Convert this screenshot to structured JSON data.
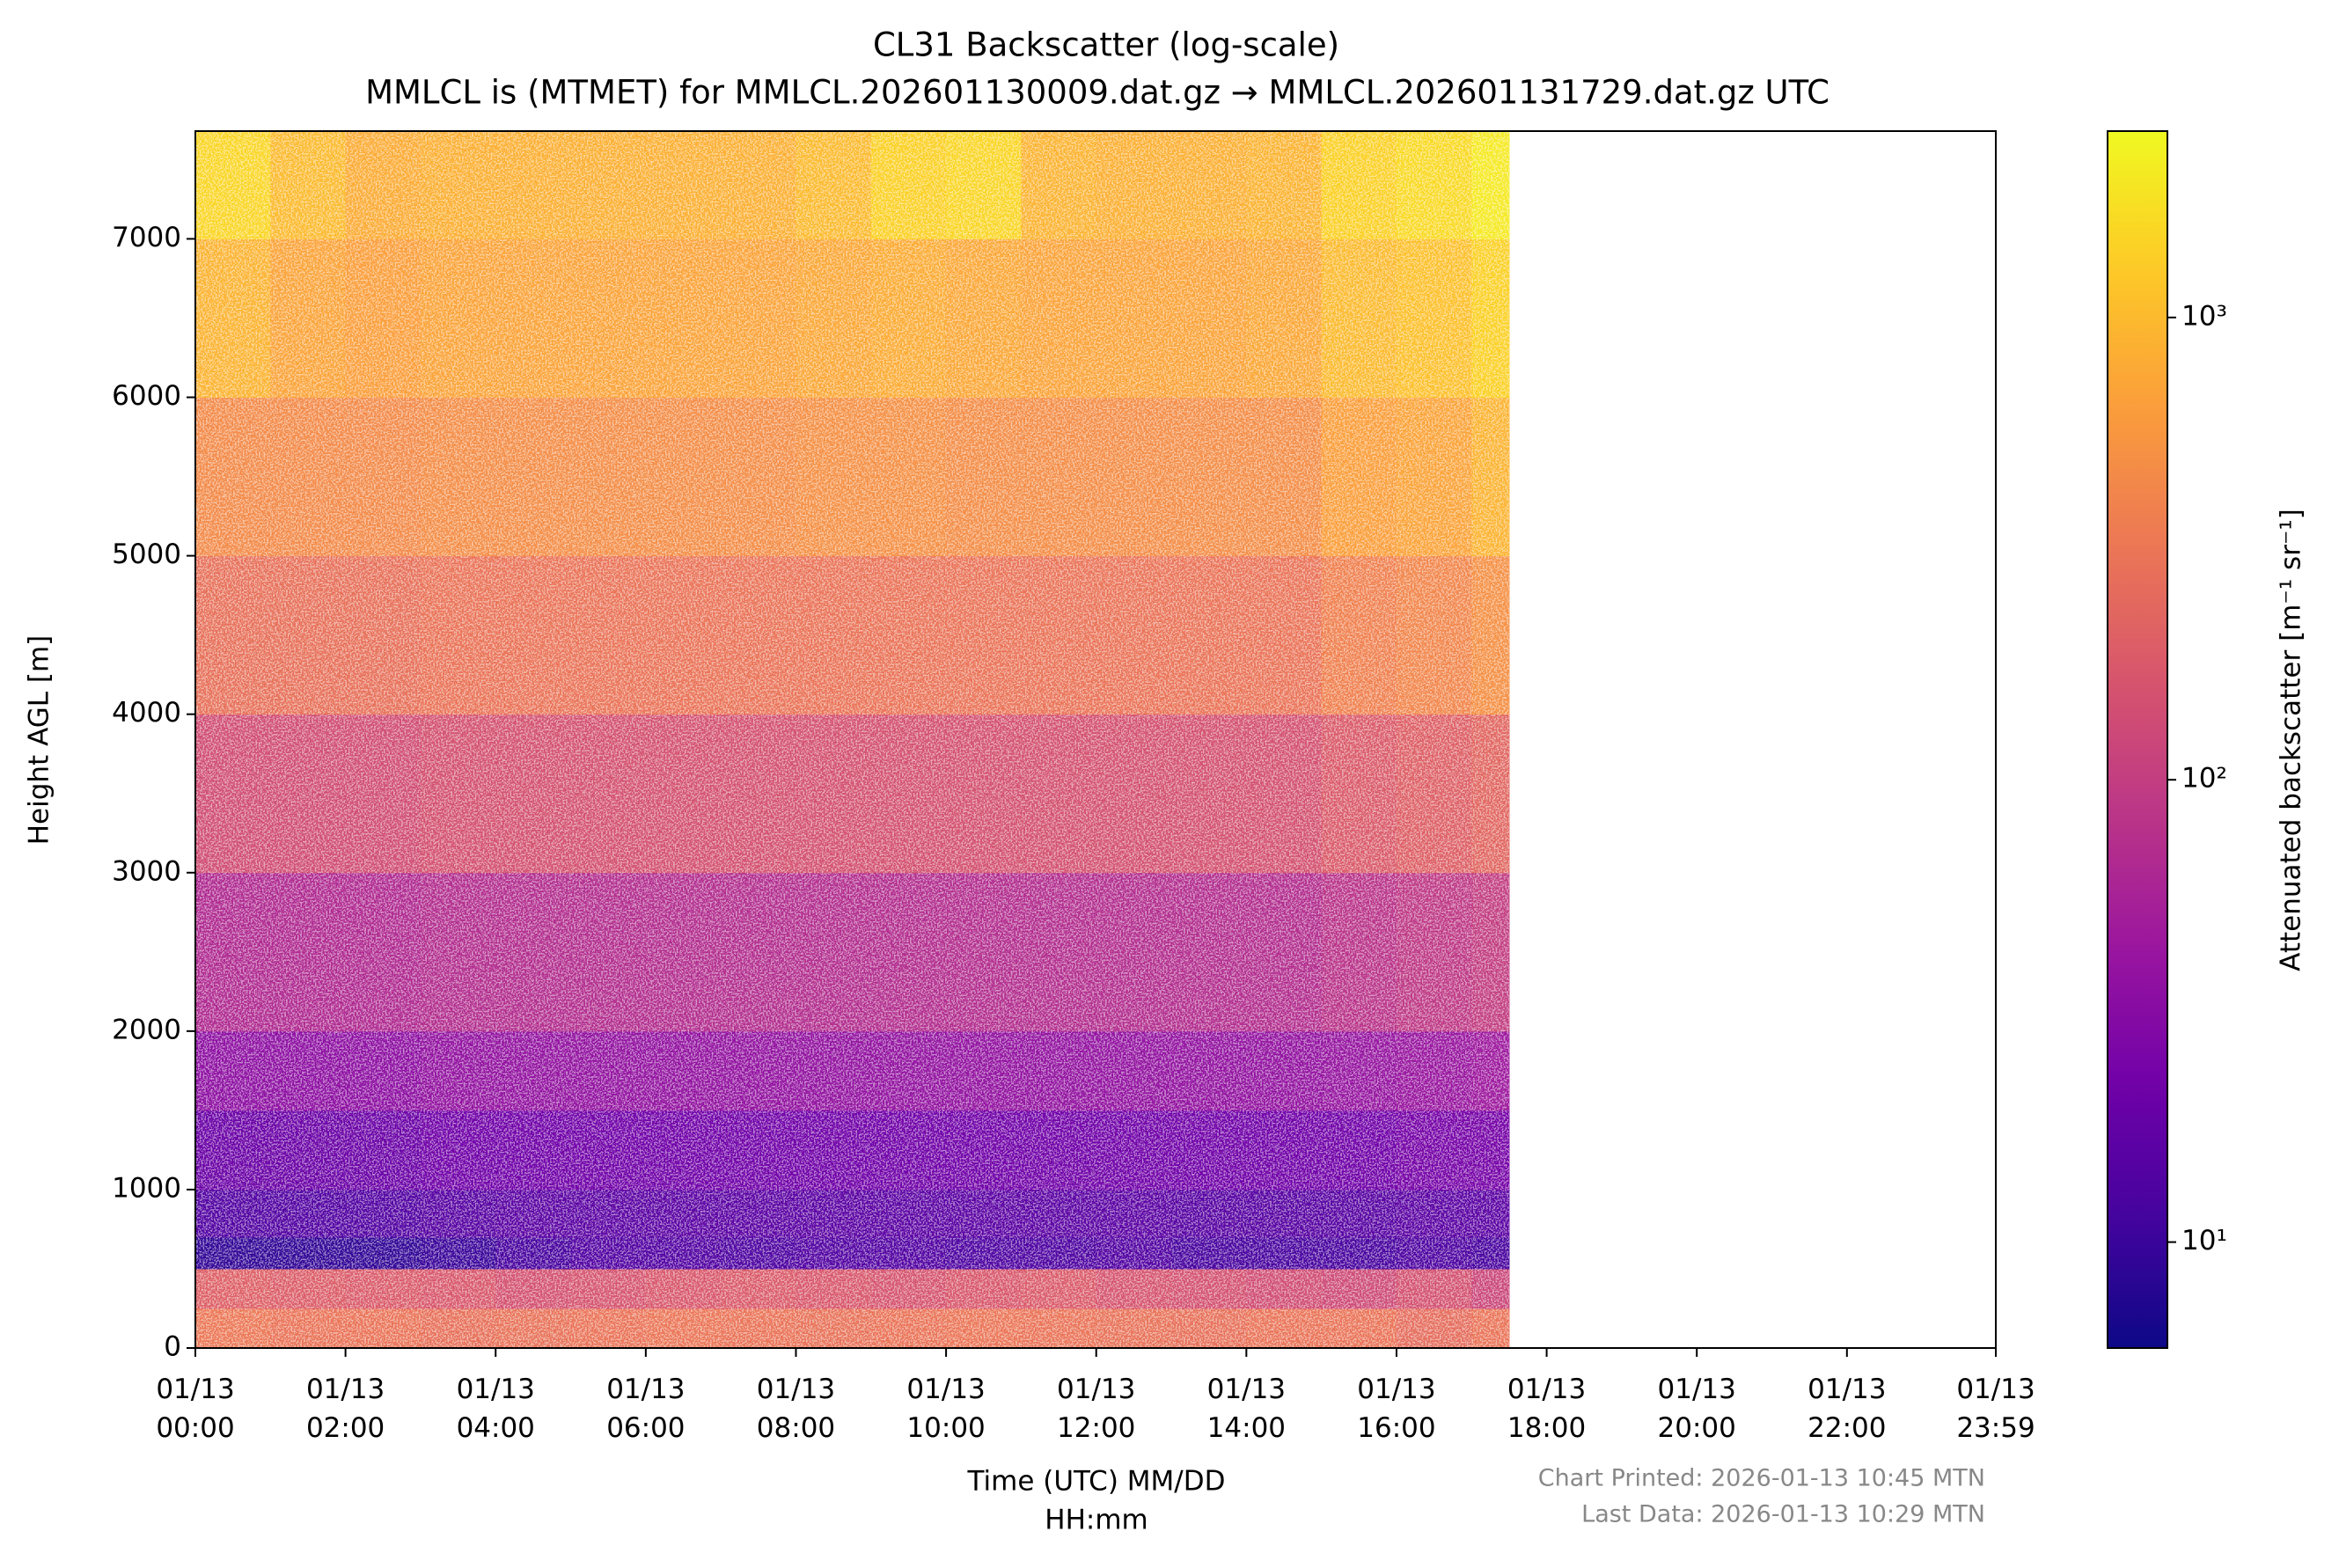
{
  "chart_data": {
    "type": "heatmap",
    "title": "CL31 Backscatter (log-scale)",
    "subtitle": "MMLCL is (MTMET) for MMLCL.202601130009.dat.gz → MMLCL.202601131729.dat.gz UTC",
    "x_label": [
      "Time (UTC) MM/DD",
      "HH:mm"
    ],
    "y_label": "Height AGL [m]",
    "colorbar_label": "Attenuated backscatter [m⁻¹ sr⁻¹]",
    "notes": [
      "Chart Printed: 2026-01-13 10:45 MTN",
      "Last Data: 2026-01-13 10:29 MTN"
    ],
    "colormap": "plasma",
    "color_scale": "log",
    "xlim": [
      0,
      23.983
    ],
    "xticks": [
      {
        "value": 0,
        "label": "01/13 00:00"
      },
      {
        "value": 2,
        "label": "01/13 02:00"
      },
      {
        "value": 4,
        "label": "01/13 04:00"
      },
      {
        "value": 6,
        "label": "01/13 06:00"
      },
      {
        "value": 8,
        "label": "01/13 08:00"
      },
      {
        "value": 10,
        "label": "01/13 10:00"
      },
      {
        "value": 12,
        "label": "01/13 12:00"
      },
      {
        "value": 14,
        "label": "01/13 14:00"
      },
      {
        "value": 16,
        "label": "01/13 16:00"
      },
      {
        "value": 18,
        "label": "01/13 18:00"
      },
      {
        "value": 20,
        "label": "01/13 20:00"
      },
      {
        "value": 22,
        "label": "01/13 22:00"
      },
      {
        "value": 23.983,
        "label": "01/13 23:59"
      }
    ],
    "ylim": [
      0,
      7680
    ],
    "yticks": [
      0,
      1000,
      2000,
      3000,
      4000,
      5000,
      6000,
      7000
    ],
    "clim": [
      5.9,
      2530
    ],
    "cticks": [
      {
        "value": 10,
        "label": "10¹"
      },
      {
        "value": 100,
        "label": "10²"
      },
      {
        "value": 1000,
        "label": "10³"
      }
    ],
    "x_edges": [
      0,
      1,
      2,
      3,
      4,
      5,
      6,
      7,
      8,
      9,
      10,
      11,
      12,
      13,
      14,
      15,
      16,
      17,
      17.5
    ],
    "y_edges": [
      0,
      250,
      500,
      700,
      1000,
      1500,
      2000,
      3000,
      4000,
      5000,
      6000,
      7000,
      7680
    ],
    "z": [
      [
        320,
        300,
        300,
        280,
        290,
        300,
        310,
        300,
        290,
        300,
        310,
        300,
        290,
        280,
        300,
        300,
        260,
        300
      ],
      [
        200,
        190,
        180,
        170,
        150,
        160,
        170,
        180,
        170,
        160,
        170,
        180,
        160,
        150,
        140,
        130,
        150,
        120
      ],
      [
        9,
        9,
        9,
        10,
        12,
        14,
        14,
        13,
        14,
        14,
        13,
        13,
        14,
        12,
        12,
        12,
        13,
        12
      ],
      [
        14,
        14,
        14,
        15,
        16,
        16,
        16,
        16,
        16,
        16,
        16,
        16,
        16,
        15,
        15,
        15,
        16,
        16
      ],
      [
        20,
        20,
        20,
        22,
        22,
        22,
        22,
        22,
        22,
        22,
        22,
        22,
        22,
        22,
        22,
        22,
        24,
        24
      ],
      [
        35,
        35,
        35,
        38,
        38,
        38,
        38,
        38,
        38,
        38,
        38,
        38,
        38,
        38,
        38,
        40,
        42,
        45
      ],
      [
        65,
        65,
        65,
        70,
        70,
        70,
        70,
        70,
        70,
        70,
        70,
        70,
        70,
        70,
        70,
        80,
        90,
        100
      ],
      [
        140,
        140,
        140,
        150,
        150,
        150,
        150,
        150,
        150,
        150,
        150,
        150,
        150,
        150,
        150,
        180,
        200,
        230
      ],
      [
        280,
        280,
        280,
        300,
        300,
        300,
        300,
        300,
        300,
        300,
        300,
        300,
        300,
        300,
        300,
        380,
        420,
        500
      ],
      [
        450,
        450,
        450,
        480,
        480,
        480,
        480,
        480,
        500,
        500,
        480,
        480,
        480,
        480,
        480,
        650,
        700,
        900
      ],
      [
        900,
        700,
        650,
        700,
        700,
        700,
        700,
        700,
        750,
        800,
        750,
        700,
        700,
        700,
        750,
        1000,
        1100,
        1400
      ],
      [
        1500,
        1000,
        800,
        850,
        850,
        850,
        850,
        850,
        1000,
        1400,
        1500,
        900,
        850,
        850,
        900,
        1400,
        1600,
        2000
      ]
    ]
  }
}
